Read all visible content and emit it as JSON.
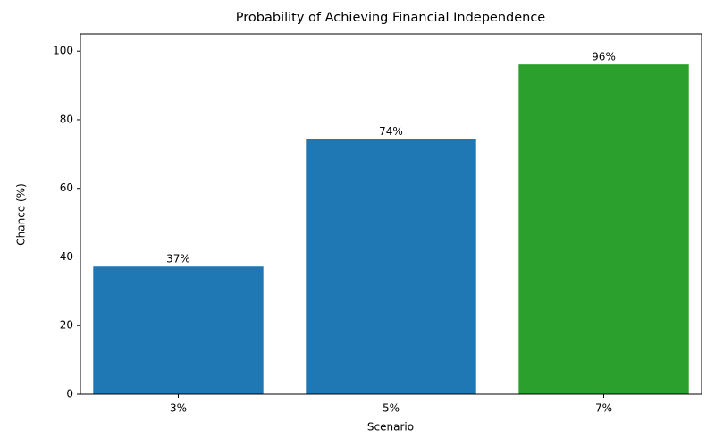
{
  "chart_data": {
    "type": "bar",
    "title": "Probability of Achieving Financial Independence",
    "x_label": "Scenario",
    "y_label": "Chance (%)",
    "categories": [
      "3%",
      "5%",
      "7%"
    ],
    "values": [
      37.2,
      74.4,
      96.1
    ],
    "value_labels": [
      "37%",
      "74%",
      "96%"
    ],
    "colors": [
      "#1f77b4",
      "#1f77b4",
      "#2ca02c"
    ],
    "ylim": [
      0,
      105
    ],
    "yticks": [
      0,
      20,
      40,
      60,
      80,
      100
    ]
  }
}
